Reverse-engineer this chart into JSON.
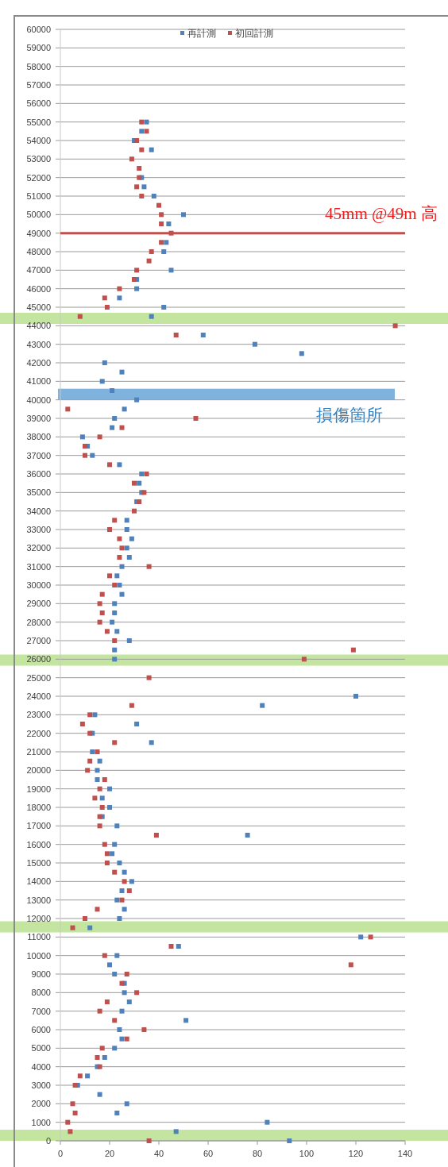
{
  "chart_data": {
    "type": "scatter",
    "xlim": [
      0,
      140
    ],
    "ylim": [
      0,
      60000
    ],
    "xticks": [
      0,
      20,
      40,
      60,
      80,
      100,
      120,
      140
    ],
    "yticks": [
      0,
      1000,
      2000,
      3000,
      4000,
      5000,
      6000,
      7000,
      8000,
      9000,
      10000,
      11000,
      12000,
      13000,
      14000,
      15000,
      16000,
      17000,
      18000,
      19000,
      20000,
      21000,
      22000,
      23000,
      24000,
      25000,
      26000,
      27000,
      28000,
      29000,
      30000,
      31000,
      32000,
      33000,
      34000,
      35000,
      36000,
      37000,
      38000,
      39000,
      40000,
      41000,
      42000,
      43000,
      44000,
      45000,
      46000,
      47000,
      48000,
      49000,
      50000,
      51000,
      52000,
      53000,
      54000,
      55000,
      56000,
      57000,
      58000,
      59000,
      60000
    ],
    "grid": "y",
    "legend": "top",
    "marker": "square",
    "series": [
      {
        "name": "再計測",
        "color": "#4f81bd",
        "x": [
          35,
          33,
          30,
          37,
          33,
          34,
          38,
          50,
          44,
          43,
          42,
          45,
          31,
          31,
          24,
          42,
          37,
          58,
          79,
          98,
          18,
          25,
          17,
          21,
          31,
          26,
          22,
          21,
          9,
          11,
          13,
          24,
          33,
          32,
          33,
          31,
          27,
          27,
          29,
          27,
          28,
          25,
          23,
          24,
          25,
          22,
          22,
          21,
          23,
          28,
          22,
          22,
          120,
          82,
          14,
          31,
          13,
          37,
          13,
          16,
          15,
          15,
          20,
          17,
          20,
          17,
          23,
          76,
          22,
          21,
          24,
          26,
          29,
          25,
          23,
          26,
          24,
          12,
          122,
          48,
          23,
          20,
          22,
          26,
          26,
          28,
          25,
          51,
          24,
          25,
          22,
          18,
          15,
          11,
          7,
          16,
          27,
          23,
          84,
          47,
          93
        ],
        "values": [
          55000,
          54500,
          54000,
          53500,
          52000,
          51500,
          51000,
          50000,
          49500,
          48500,
          48000,
          47000,
          46500,
          46000,
          45500,
          45000,
          44500,
          43500,
          43000,
          42500,
          42000,
          41500,
          41000,
          40500,
          40000,
          39500,
          39000,
          38500,
          38000,
          37500,
          37000,
          36500,
          36000,
          35500,
          35000,
          34500,
          33500,
          33000,
          32500,
          32000,
          31500,
          31000,
          30500,
          30000,
          29500,
          29000,
          28500,
          28000,
          27500,
          27000,
          26500,
          26000,
          24000,
          23500,
          23000,
          22500,
          22000,
          21500,
          21000,
          20500,
          20000,
          19500,
          19000,
          18500,
          18000,
          17500,
          17000,
          16500,
          16000,
          15500,
          15000,
          14500,
          14000,
          13500,
          13000,
          12500,
          12000,
          11500,
          11000,
          10500,
          10000,
          9500,
          9000,
          8500,
          8000,
          7500,
          7000,
          6500,
          6000,
          5500,
          5000,
          4500,
          4000,
          3500,
          3000,
          2500,
          2000,
          1500,
          1000,
          500,
          0
        ]
      },
      {
        "name": "初回計測",
        "color": "#c0504d",
        "x": [
          33,
          35,
          31,
          33,
          29,
          32,
          32,
          31,
          33,
          40,
          41,
          41,
          45,
          41,
          37,
          36,
          31,
          30,
          24,
          18,
          19,
          8,
          136,
          47,
          3,
          55,
          25,
          16,
          10,
          10,
          20,
          35,
          30,
          34,
          32,
          30,
          22,
          20,
          24,
          25,
          24,
          36,
          20,
          22,
          17,
          16,
          17,
          16,
          19,
          22,
          119,
          99,
          36,
          29,
          12,
          9,
          12,
          22,
          15,
          12,
          11,
          18,
          16,
          14,
          17,
          16,
          16,
          39,
          18,
          19,
          19,
          22,
          26,
          28,
          25,
          15,
          10,
          5,
          126,
          45,
          18,
          118,
          27,
          25,
          31,
          19,
          16,
          22,
          34,
          27,
          17,
          15,
          16,
          8,
          6,
          5,
          6,
          3,
          4,
          36
        ],
        "values": [
          55000,
          54500,
          54000,
          53500,
          53000,
          52500,
          52000,
          51500,
          51000,
          50500,
          50000,
          49500,
          49000,
          48500,
          48000,
          47500,
          47000,
          46500,
          46000,
          45500,
          45000,
          44500,
          44000,
          43500,
          39500,
          39000,
          38500,
          38000,
          37500,
          37000,
          36500,
          36000,
          35500,
          35000,
          34500,
          34000,
          33500,
          33000,
          32500,
          32000,
          31500,
          31000,
          30500,
          30000,
          29500,
          29000,
          28500,
          28000,
          27500,
          27000,
          26500,
          26000,
          25000,
          23500,
          23000,
          22500,
          22000,
          21500,
          21000,
          20500,
          20000,
          19500,
          19000,
          18500,
          18000,
          17500,
          17000,
          16500,
          16000,
          15500,
          15000,
          14500,
          14000,
          13500,
          13000,
          12500,
          12000,
          11500,
          11000,
          10500,
          10000,
          9500,
          9000,
          8500,
          8000,
          7500,
          7000,
          6500,
          6000,
          5500,
          5000,
          4500,
          4000,
          3500,
          3000,
          2000,
          1500,
          1000,
          500,
          0
        ]
      }
    ],
    "ref_lines": [
      {
        "axis": "y",
        "value": 49000,
        "label": "45mm @49m 高",
        "color": "#c0504d"
      }
    ],
    "bands": [
      {
        "axis": "y",
        "from": 44100,
        "to": 44700,
        "color": "#c4e5a0"
      },
      {
        "axis": "y",
        "from": 40000,
        "to": 40600,
        "label": "損傷箇所",
        "color": "#7fb2dc"
      },
      {
        "axis": "y",
        "from": 25650,
        "to": 26250,
        "color": "#c4e5a0"
      },
      {
        "axis": "y",
        "from": 11250,
        "to": 11850,
        "color": "#c4e5a0"
      },
      {
        "axis": "y",
        "from": 0,
        "to": 600,
        "color": "#c4e5a0"
      }
    ]
  }
}
